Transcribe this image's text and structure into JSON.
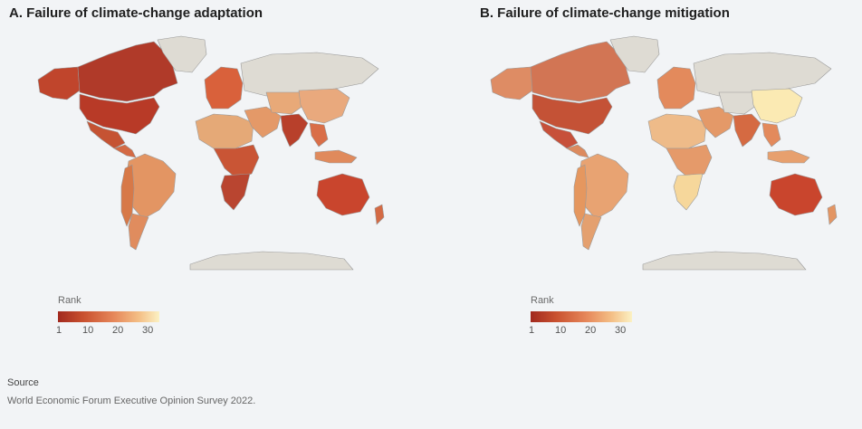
{
  "panels": [
    {
      "title": "A. Failure of climate-change adaptation",
      "legend": {
        "title": "Rank",
        "ticks": [
          "1",
          "10",
          "20",
          "30"
        ]
      },
      "regions": {
        "canada": "#b03a29",
        "usa": "#b83a27",
        "alaska": "#c0452c",
        "greenland": "#dedbd3",
        "mexico": "#c55333",
        "central_america": "#d46a44",
        "south_america": "#e39563",
        "andes": "#d77948",
        "argentina": "#e08c5e",
        "europe": "#d9613b",
        "north_africa": "#e5a977",
        "central_africa": "#c95535",
        "southern_africa": "#b94530",
        "russia": "#dedbd3",
        "middle_east": "#e49968",
        "central_asia": "#e8a978",
        "india": "#b8402b",
        "china": "#e9a97d",
        "se_asia": "#d96e48",
        "indonesia": "#e08a5c",
        "australia": "#c9452d",
        "new_zealand": "#d46a44",
        "antarctica": "#dedbd3"
      }
    },
    {
      "title": "B. Failure of climate-change mitigation",
      "legend": {
        "title": "Rank",
        "ticks": [
          "1",
          "10",
          "20",
          "30"
        ]
      },
      "regions": {
        "canada": "#d27554",
        "usa": "#c45236",
        "alaska": "#de8c64",
        "greenland": "#dedbd3",
        "mexico": "#c7503a",
        "central_america": "#dc8a5e",
        "south_america": "#e8a372",
        "andes": "#e5975f",
        "argentina": "#e4a06f",
        "europe": "#e38a5c",
        "north_africa": "#eebb89",
        "central_africa": "#e59a6a",
        "southern_africa": "#f6d79b",
        "russia": "#dedbd3",
        "middle_east": "#e49968",
        "central_asia": "#dedbd3",
        "india": "#d56a42",
        "china": "#fbeab3",
        "se_asia": "#e38a5c",
        "indonesia": "#e7a06e",
        "australia": "#c9452d",
        "new_zealand": "#e39563",
        "antarctica": "#dedbd3"
      }
    }
  ],
  "source": {
    "title": "Source",
    "text": "World Economic Forum Executive Opinion Survey 2022."
  }
}
